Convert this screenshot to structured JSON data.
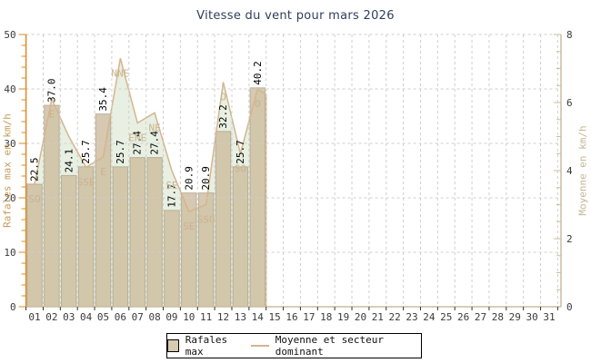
{
  "title": "Vitesse du vent pour mars 2026",
  "colors": {
    "title": "#2f3e5c",
    "axis_left": "#dd8a26",
    "axis_left_label": "#c79a56",
    "axis_right": "#c9bd9f",
    "axis_right_label": "#c3b795",
    "tick_label": "#3b3b3b",
    "grid": "#cfcfcf",
    "bar_fill": "#cdbc9e",
    "bar_border": "#a69a7e",
    "area_fill": "#e7f0e2",
    "line": "#d6b48e",
    "direction_label": "#cbb38e",
    "value_label": "#000000",
    "bottom_tick": "#333333"
  },
  "chart_data": {
    "type": "bar",
    "title": "Vitesse du vent pour mars 2026",
    "xlabel": "",
    "ylabel_left": "Rafales max en km/h",
    "ylabel_right": "Moyenne en km/h",
    "ylim_left": [
      0,
      50
    ],
    "ylim_right": [
      0,
      8
    ],
    "left_tick_minor": 2,
    "left_tick_label": 10,
    "right_tick_minor": 0.5,
    "right_tick_label": 2,
    "grid": "dashed",
    "x_labels": [
      "01",
      "02",
      "03",
      "04",
      "05",
      "06",
      "07",
      "08",
      "09",
      "10",
      "11",
      "12",
      "13",
      "14",
      "15",
      "16",
      "17",
      "18",
      "19",
      "20",
      "21",
      "22",
      "23",
      "24",
      "25",
      "26",
      "27",
      "28",
      "29",
      "30",
      "31"
    ],
    "series": [
      {
        "name": "Rafales max",
        "type": "bar",
        "axis": "left",
        "values": [
          22.5,
          37.0,
          24.1,
          25.7,
          35.4,
          25.7,
          27.4,
          27.4,
          17.7,
          20.9,
          20.9,
          32.2,
          25.7,
          40.2
        ],
        "labels": [
          "22.5",
          "37.0",
          "24.1",
          "25.7",
          "35.4",
          "25.7",
          "27.4",
          "27.4",
          "17.7",
          "20.9",
          "20.9",
          "32.2",
          "25.7",
          "40.2"
        ]
      },
      {
        "name": "Moyenne et secteur dominant",
        "type": "area-line",
        "axis": "right",
        "values": [
          3.6,
          6.1,
          5.0,
          4.1,
          4.4,
          7.3,
          5.4,
          5.7,
          4.0,
          2.8,
          3.0,
          6.6,
          4.5,
          6.4
        ],
        "directions": [
          "SO",
          "E",
          "",
          "SSE",
          "E",
          "NNE",
          "ENE",
          "NE",
          "SE",
          "SE",
          "SSO",
          "O",
          "SO",
          "O"
        ]
      }
    ]
  },
  "legend": {
    "items": [
      {
        "label": "Rafales max",
        "marker": "box"
      },
      {
        "label": "Moyenne et secteur dominant",
        "marker": "line"
      }
    ]
  }
}
